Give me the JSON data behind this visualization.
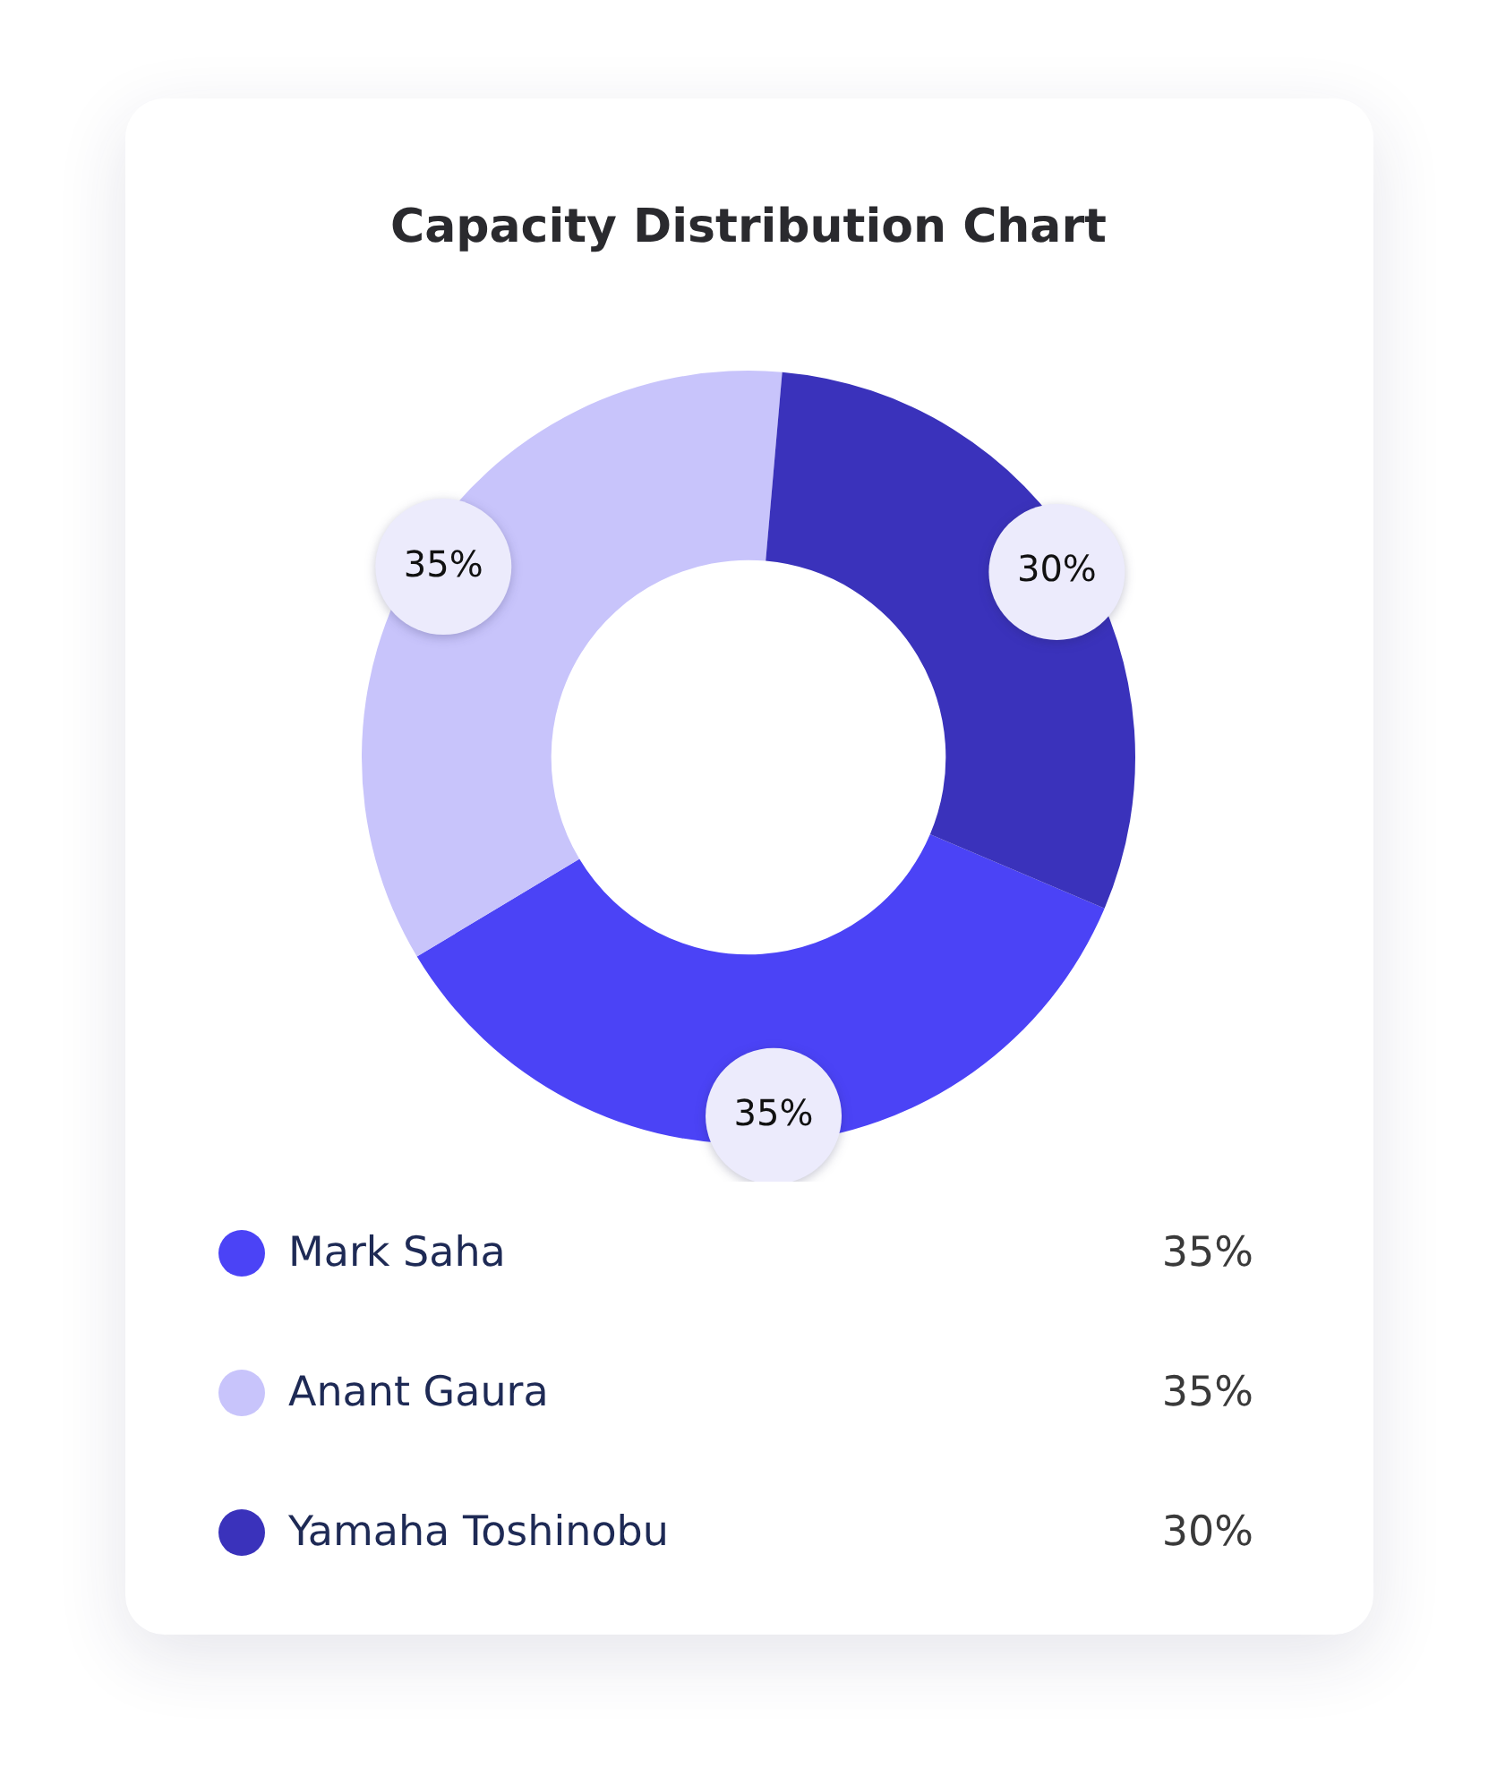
{
  "chart_data": {
    "type": "donut",
    "title": "Capacity Distribution Chart",
    "categories": [
      "Mark Saha",
      "Anant Gaura",
      "Yamaha Toshinobu"
    ],
    "values": [
      35,
      35,
      30
    ],
    "colors": [
      "#4b43f6",
      "#c8c4fb",
      "#3a32bb"
    ],
    "value_labels": [
      "35%",
      "35%",
      "30%"
    ],
    "legend": "bottom"
  }
}
